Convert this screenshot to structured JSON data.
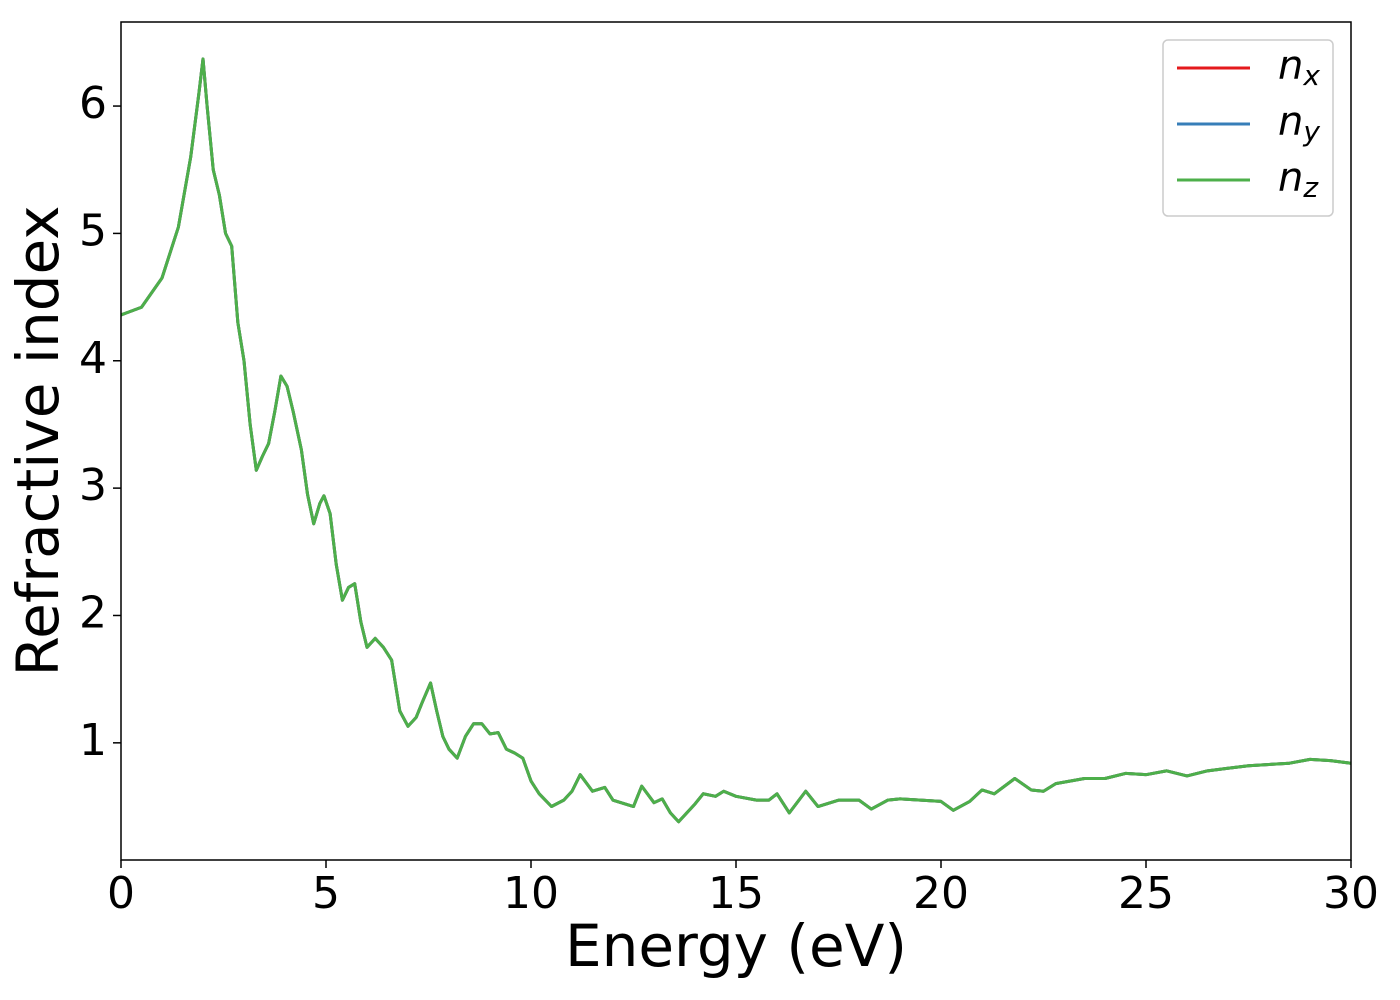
{
  "chart_data": {
    "type": "line",
    "xlabel": "Energy (eV)",
    "ylabel": "Refractive index",
    "x": [
      0,
      0.5,
      1.0,
      1.4,
      1.7,
      1.9,
      2.0,
      2.1,
      2.25,
      2.4,
      2.55,
      2.7,
      2.85,
      3.0,
      3.15,
      3.3,
      3.45,
      3.6,
      3.75,
      3.9,
      4.05,
      4.2,
      4.4,
      4.55,
      4.7,
      4.85,
      4.95,
      5.1,
      5.25,
      5.4,
      5.55,
      5.7,
      5.85,
      6.0,
      6.2,
      6.4,
      6.6,
      6.8,
      7.0,
      7.2,
      7.35,
      7.55,
      7.7,
      7.85,
      8.0,
      8.2,
      8.4,
      8.6,
      8.8,
      9.0,
      9.2,
      9.4,
      9.6,
      9.8,
      10.0,
      10.2,
      10.5,
      10.8,
      11.0,
      11.2,
      11.5,
      11.8,
      12.0,
      12.5,
      12.7,
      13.0,
      13.2,
      13.4,
      13.6,
      14.0,
      14.2,
      14.5,
      14.7,
      15.0,
      15.5,
      15.8,
      16.0,
      16.3,
      16.7,
      17.0,
      17.5,
      18.0,
      18.3,
      18.7,
      19.0,
      19.5,
      20.0,
      20.3,
      20.7,
      21.0,
      21.3,
      21.8,
      22.2,
      22.5,
      22.8,
      23.5,
      24.0,
      24.5,
      25.0,
      25.5,
      26.0,
      26.5,
      27.0,
      27.5,
      28.0,
      28.5,
      29.0,
      29.5,
      30.0
    ],
    "series": [
      {
        "name": "n",
        "subscript": "x",
        "color": "#e41a1c",
        "values": [
          4.36,
          4.42,
          4.65,
          5.05,
          5.6,
          6.1,
          6.37,
          6.0,
          5.5,
          5.3,
          5.0,
          4.9,
          4.3,
          4.0,
          3.5,
          3.14,
          3.25,
          3.35,
          3.6,
          3.88,
          3.8,
          3.6,
          3.3,
          2.95,
          2.72,
          2.88,
          2.94,
          2.8,
          2.4,
          2.12,
          2.22,
          2.25,
          1.95,
          1.75,
          1.82,
          1.75,
          1.65,
          1.25,
          1.13,
          1.2,
          1.32,
          1.47,
          1.25,
          1.05,
          0.95,
          0.88,
          1.05,
          1.15,
          1.15,
          1.07,
          1.08,
          0.95,
          0.92,
          0.88,
          0.7,
          0.6,
          0.5,
          0.55,
          0.62,
          0.75,
          0.62,
          0.65,
          0.55,
          0.5,
          0.66,
          0.53,
          0.56,
          0.45,
          0.38,
          0.52,
          0.6,
          0.58,
          0.62,
          0.58,
          0.55,
          0.55,
          0.6,
          0.45,
          0.62,
          0.5,
          0.55,
          0.55,
          0.48,
          0.55,
          0.56,
          0.55,
          0.54,
          0.47,
          0.54,
          0.63,
          0.6,
          0.72,
          0.63,
          0.62,
          0.68,
          0.72,
          0.72,
          0.76,
          0.75,
          0.78,
          0.74,
          0.78,
          0.8,
          0.82,
          0.83,
          0.84,
          0.87,
          0.86,
          0.84
        ]
      },
      {
        "name": "n",
        "subscript": "y",
        "color": "#377eb8",
        "values": [
          4.36,
          4.42,
          4.65,
          5.05,
          5.6,
          6.1,
          6.37,
          6.0,
          5.5,
          5.3,
          5.0,
          4.9,
          4.3,
          4.0,
          3.5,
          3.14,
          3.25,
          3.35,
          3.6,
          3.88,
          3.8,
          3.6,
          3.3,
          2.95,
          2.72,
          2.88,
          2.94,
          2.8,
          2.4,
          2.12,
          2.22,
          2.25,
          1.95,
          1.75,
          1.82,
          1.75,
          1.65,
          1.25,
          1.13,
          1.2,
          1.32,
          1.47,
          1.25,
          1.05,
          0.95,
          0.88,
          1.05,
          1.15,
          1.15,
          1.07,
          1.08,
          0.95,
          0.92,
          0.88,
          0.7,
          0.6,
          0.5,
          0.55,
          0.62,
          0.75,
          0.62,
          0.65,
          0.55,
          0.5,
          0.66,
          0.53,
          0.56,
          0.45,
          0.38,
          0.52,
          0.6,
          0.58,
          0.62,
          0.58,
          0.55,
          0.55,
          0.6,
          0.45,
          0.62,
          0.5,
          0.55,
          0.55,
          0.48,
          0.55,
          0.56,
          0.55,
          0.54,
          0.47,
          0.54,
          0.63,
          0.6,
          0.72,
          0.63,
          0.62,
          0.68,
          0.72,
          0.72,
          0.76,
          0.75,
          0.78,
          0.74,
          0.78,
          0.8,
          0.82,
          0.83,
          0.84,
          0.87,
          0.86,
          0.84
        ]
      },
      {
        "name": "n",
        "subscript": "z",
        "color": "#4daf4a",
        "values": [
          4.36,
          4.42,
          4.65,
          5.05,
          5.6,
          6.1,
          6.37,
          6.0,
          5.5,
          5.3,
          5.0,
          4.9,
          4.3,
          4.0,
          3.5,
          3.14,
          3.25,
          3.35,
          3.6,
          3.88,
          3.8,
          3.6,
          3.3,
          2.95,
          2.72,
          2.88,
          2.94,
          2.8,
          2.4,
          2.12,
          2.22,
          2.25,
          1.95,
          1.75,
          1.82,
          1.75,
          1.65,
          1.25,
          1.13,
          1.2,
          1.32,
          1.47,
          1.25,
          1.05,
          0.95,
          0.88,
          1.05,
          1.15,
          1.15,
          1.07,
          1.08,
          0.95,
          0.92,
          0.88,
          0.7,
          0.6,
          0.5,
          0.55,
          0.62,
          0.75,
          0.62,
          0.65,
          0.55,
          0.5,
          0.66,
          0.53,
          0.56,
          0.45,
          0.38,
          0.52,
          0.6,
          0.58,
          0.62,
          0.58,
          0.55,
          0.55,
          0.6,
          0.45,
          0.62,
          0.5,
          0.55,
          0.55,
          0.48,
          0.55,
          0.56,
          0.55,
          0.54,
          0.47,
          0.54,
          0.63,
          0.6,
          0.72,
          0.63,
          0.62,
          0.68,
          0.72,
          0.72,
          0.76,
          0.75,
          0.78,
          0.74,
          0.78,
          0.8,
          0.82,
          0.83,
          0.84,
          0.87,
          0.86,
          0.84
        ]
      }
    ],
    "xlim": [
      0,
      30
    ],
    "xticks": [
      0,
      5,
      10,
      15,
      20,
      25,
      30
    ],
    "ylim": [
      0.08,
      6.66
    ],
    "yticks": [
      1,
      2,
      3,
      4,
      5,
      6
    ],
    "grid": false,
    "legend": "upper right"
  }
}
